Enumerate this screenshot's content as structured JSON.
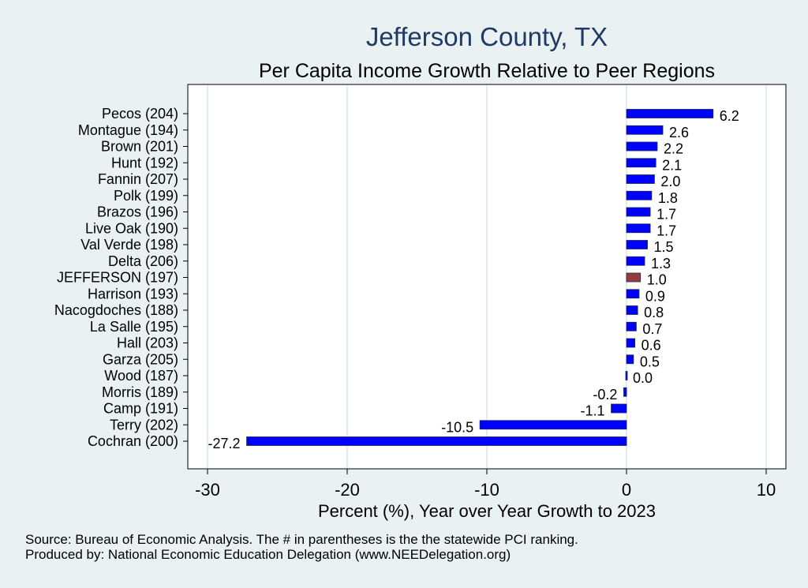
{
  "chart_data": {
    "type": "bar",
    "orientation": "horizontal",
    "title": "Jefferson County, TX",
    "subtitle": "Per Capita Income Growth Relative to Peer Regions",
    "xlabel": "Percent (%), Year over Year Growth to 2023",
    "xlim": [
      -30,
      10
    ],
    "xticks": [
      -30,
      -20,
      -10,
      0,
      10
    ],
    "grid": true,
    "categories": [
      "Pecos (204)",
      "Montague (194)",
      "Brown (201)",
      "Hunt (192)",
      "Fannin (207)",
      "Polk (199)",
      "Brazos (196)",
      "Live Oak (190)",
      "Val Verde (198)",
      "Delta (206)",
      "JEFFERSON (197)",
      "Harrison (193)",
      "Nacogdoches (188)",
      "La Salle (195)",
      "Hall (203)",
      "Garza (205)",
      "Wood (187)",
      "Morris (189)",
      "Camp (191)",
      "Terry (202)",
      "Cochran (200)"
    ],
    "values": [
      6.2,
      2.6,
      2.2,
      2.1,
      2.0,
      1.8,
      1.7,
      1.7,
      1.5,
      1.3,
      1.0,
      0.9,
      0.8,
      0.7,
      0.6,
      0.5,
      0.0,
      -0.2,
      -1.1,
      -10.5,
      -27.2
    ],
    "labels": [
      "6.2",
      "2.6",
      "2.2",
      "2.1",
      "2.0",
      "1.8",
      "1.7",
      "1.7",
      "1.5",
      "1.3",
      "1.0",
      "0.9",
      "0.8",
      "0.7",
      "0.6",
      "0.5",
      "0.0",
      "-0.2",
      "-1.1",
      "-10.5",
      "-27.2"
    ],
    "highlight_index": 10,
    "colors": {
      "bar": "#0000ff",
      "highlight": "#943c3f",
      "grid": "#e4ecef",
      "title": "#1f3a64",
      "background": "#eaf1f3",
      "plot_bg": "#ffffff"
    }
  },
  "notes": {
    "source": "Source: Bureau of Economic Analysis. The # in parentheses is the the statewide PCI ranking.",
    "produced_by": "Produced by: National Economic Education Delegation (www.NEEDelegation.org)"
  }
}
